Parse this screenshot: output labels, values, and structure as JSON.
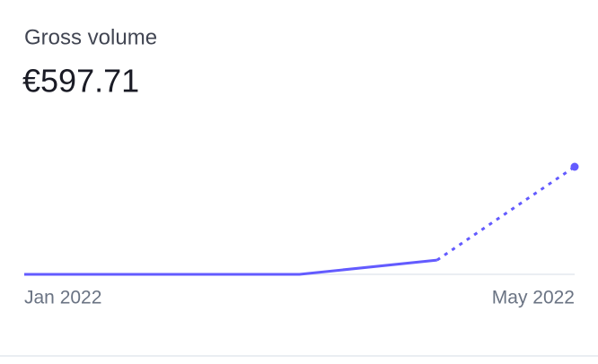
{
  "chart_data": {
    "type": "line",
    "title": "Gross volume",
    "headline": "€597.71",
    "categories": [
      "Jan 2022",
      null,
      null,
      null,
      "May 2022"
    ],
    "series": [
      {
        "name": "Gross volume",
        "color": "#635bff",
        "values": [
          0,
          0,
          0,
          70,
          528
        ]
      }
    ],
    "last_segment_dashed": true
  }
}
